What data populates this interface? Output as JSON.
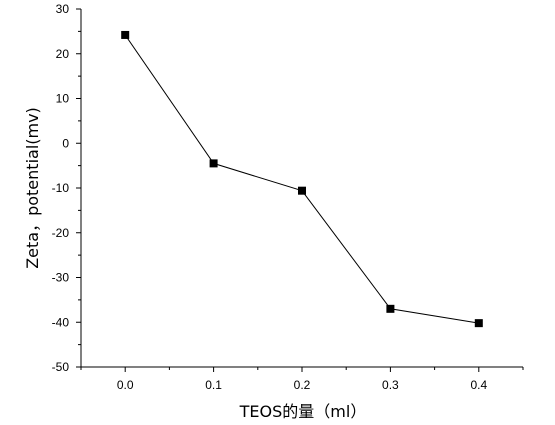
{
  "chart_data": {
    "type": "line",
    "xlabel": "TEOS的量（ml）",
    "ylabel": "Zeta，potential(mv)",
    "xlim": [
      -0.05,
      0.45
    ],
    "ylim": [
      -50,
      30
    ],
    "x_ticks": [
      0.0,
      0.1,
      0.2,
      0.3,
      0.4
    ],
    "x_tick_labels": [
      "0.0",
      "0.1",
      "0.2",
      "0.3",
      "0.4"
    ],
    "y_ticks": [
      30,
      20,
      10,
      0,
      -10,
      -20,
      -30,
      -40,
      -50
    ],
    "y_tick_labels": [
      "30",
      "20",
      "10",
      "0",
      "-10",
      "-20",
      "-30",
      "-40",
      "-50"
    ],
    "series": [
      {
        "x": [
          0.0,
          0.1,
          0.2,
          0.3,
          0.4
        ],
        "y": [
          24.2,
          -4.5,
          -10.6,
          -37.0,
          -40.2
        ],
        "marker": "square",
        "color": "#000000"
      }
    ],
    "grid": false,
    "legend": "none"
  }
}
